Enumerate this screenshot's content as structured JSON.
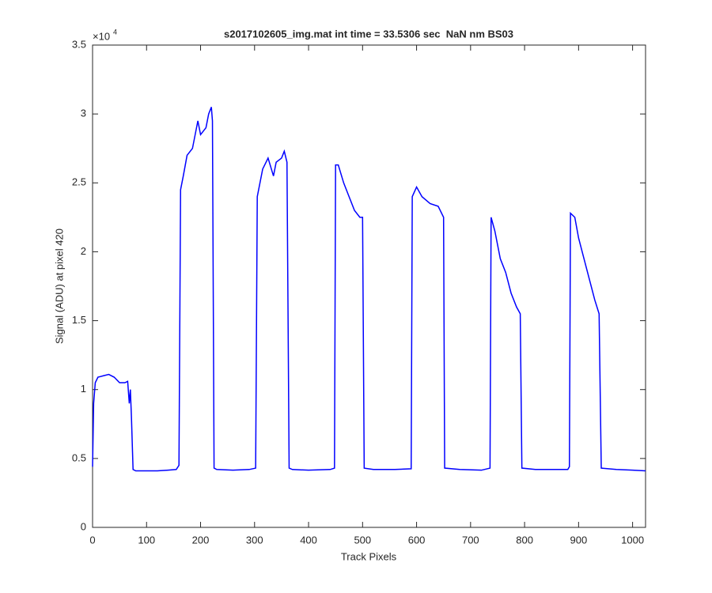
{
  "chart_data": {
    "type": "line",
    "title": "s2017102605_img.mat int time = 33.5306 sec  NaN nm BS03",
    "x_label": "Track Pixels",
    "y_label": "Signal (ADU) at pixel 420",
    "y_multiplier": {
      "base": "×10",
      "exponent": "4"
    },
    "xlim": [
      0,
      1024
    ],
    "ylim": [
      0,
      35000
    ],
    "xticks": [
      0,
      100,
      200,
      300,
      400,
      500,
      600,
      700,
      800,
      900,
      1000
    ],
    "yticks": [
      0,
      {
        "value": 5000,
        "label": "0.5"
      },
      {
        "value": 10000,
        "label": "1"
      },
      {
        "value": 15000,
        "label": "1.5"
      },
      {
        "value": 20000,
        "label": "2"
      },
      {
        "value": 25000,
        "label": "2.5"
      },
      {
        "value": 30000,
        "label": "3"
      },
      {
        "value": 35000,
        "label": "3.5"
      }
    ],
    "grid": false,
    "series": [
      {
        "color": "#0000ff",
        "x": [
          0,
          2,
          5,
          10,
          20,
          30,
          40,
          50,
          60,
          65,
          68,
          70,
          72,
          75,
          80,
          100,
          120,
          140,
          155,
          160,
          163,
          168,
          175,
          185,
          195,
          200,
          210,
          215,
          220,
          222,
          225,
          230,
          260,
          290,
          302,
          305,
          315,
          325,
          335,
          340,
          350,
          355,
          360,
          364,
          370,
          400,
          440,
          448,
          450,
          455,
          465,
          475,
          485,
          495,
          500,
          503,
          520,
          560,
          590,
          592,
          600,
          610,
          625,
          640,
          650,
          652,
          680,
          720,
          736,
          738,
          745,
          755,
          765,
          775,
          785,
          792,
          795,
          820,
          880,
          883,
          885,
          893,
          900,
          910,
          920,
          930,
          938,
          942,
          970,
          1000,
          1024
        ],
        "values": [
          4400,
          9000,
          10500,
          10900,
          11000,
          11100,
          10900,
          10500,
          10500,
          10600,
          9000,
          10000,
          8000,
          4200,
          4100,
          4100,
          4100,
          4150,
          4200,
          4500,
          24500,
          25500,
          27000,
          27500,
          29500,
          28500,
          29000,
          30000,
          30500,
          29500,
          4300,
          4200,
          4150,
          4200,
          4300,
          24000,
          26000,
          26800,
          25500,
          26500,
          26800,
          27300,
          26500,
          4300,
          4200,
          4150,
          4200,
          4300,
          26300,
          26300,
          25000,
          24000,
          23000,
          22500,
          22500,
          4300,
          4200,
          4200,
          4250,
          24000,
          24700,
          24000,
          23500,
          23300,
          22500,
          4300,
          4200,
          4150,
          4300,
          22500,
          21500,
          19500,
          18500,
          17000,
          16000,
          15500,
          4300,
          4200,
          4200,
          4400,
          22800,
          22500,
          21000,
          19500,
          18000,
          16500,
          15500,
          4300,
          4200,
          4150,
          4100
        ]
      }
    ]
  }
}
